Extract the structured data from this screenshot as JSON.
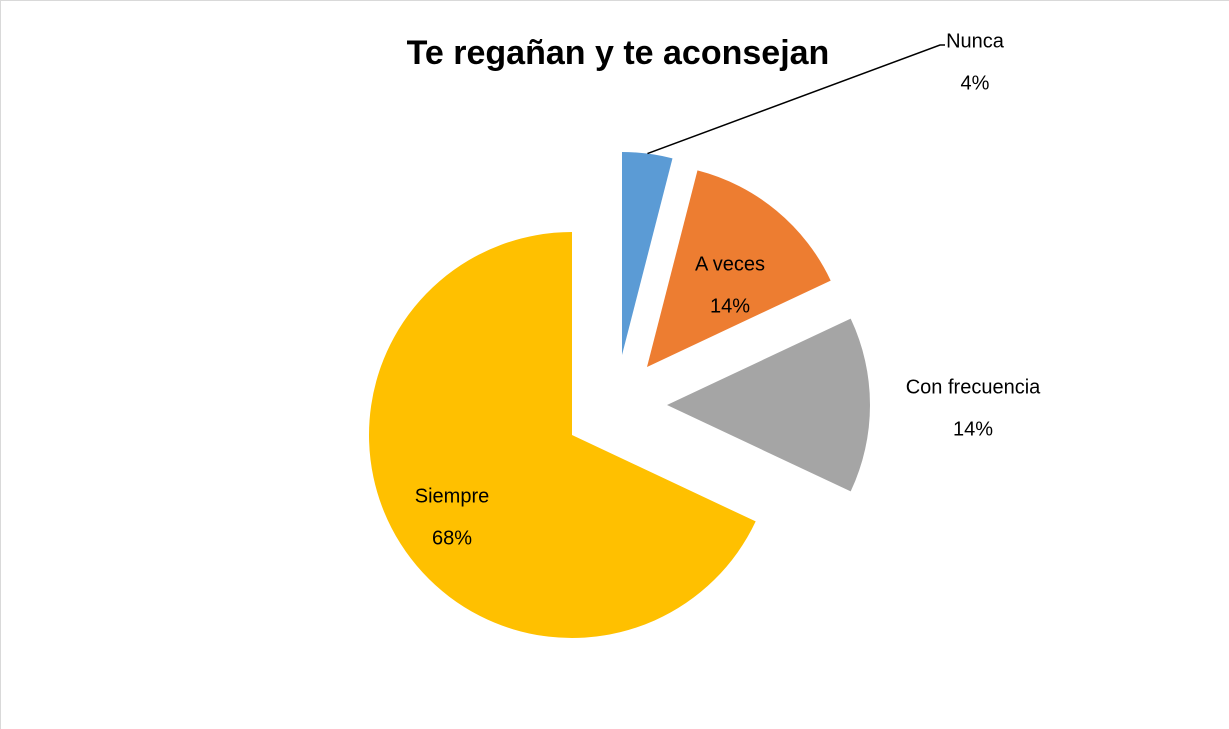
{
  "chart_data": {
    "type": "pie",
    "title": "Te regañan y te aconsejan",
    "categories": [
      "Nunca",
      "A veces",
      "Con frecuencia",
      "Siempre"
    ],
    "values": [
      4,
      14,
      14,
      68
    ],
    "value_labels": [
      "4%",
      "14%",
      "14%",
      "68%"
    ],
    "colors": [
      "#5b9bd5",
      "#ed7d31",
      "#a5a5a5",
      "#ffc000"
    ]
  }
}
